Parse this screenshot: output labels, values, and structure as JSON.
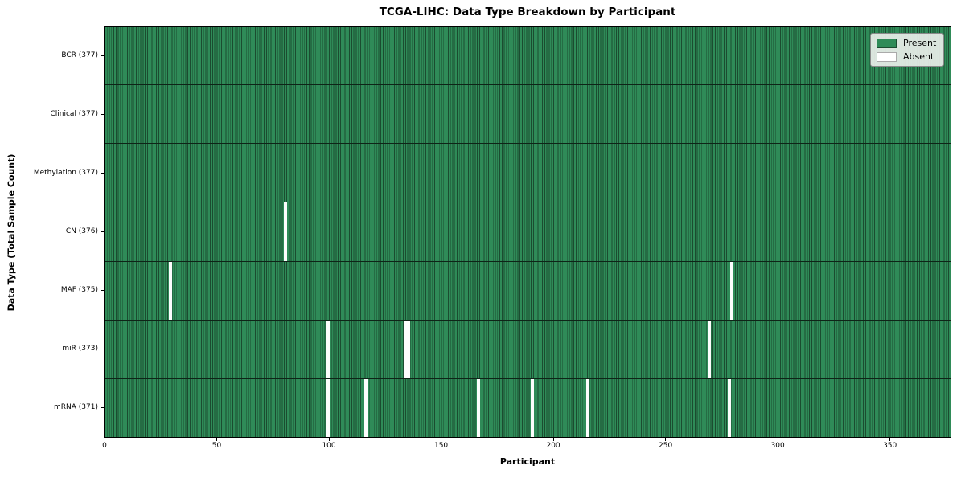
{
  "title": "TCGA-LIHC: Data Type Breakdown by Participant",
  "colors": {
    "present": "#2f8b58",
    "present_edge": "#1b4c30",
    "absent": "#ffffff",
    "absent_edge": "#aaaaaa",
    "figure_bg": "#ffffff"
  },
  "chart_data": {
    "type": "heatmap",
    "title": "TCGA-LIHC: Data Type Breakdown by Participant",
    "xlabel": "Participant",
    "ylabel": "Data Type (Total Sample Count)",
    "xlim": [
      0,
      377
    ],
    "x_ticks": [
      0,
      50,
      100,
      150,
      200,
      250,
      300,
      350
    ],
    "n_participants": 377,
    "grid": false,
    "legend_position": "upper right",
    "legend": [
      {
        "label": "Present",
        "color": "#2f8b58"
      },
      {
        "label": "Absent",
        "color": "#ffffff"
      }
    ],
    "rows": [
      {
        "data_type": "BCR",
        "label": "BCR (377)",
        "total": 377,
        "absent_participants": []
      },
      {
        "data_type": "Clinical",
        "label": "Clinical (377)",
        "total": 377,
        "absent_participants": []
      },
      {
        "data_type": "Methylation",
        "label": "Methylation (377)",
        "total": 377,
        "absent_participants": []
      },
      {
        "data_type": "CN",
        "label": "CN (376)",
        "total": 376,
        "absent_participants": [
          80
        ]
      },
      {
        "data_type": "MAF",
        "label": "MAF (375)",
        "total": 375,
        "absent_participants": [
          29,
          279
        ]
      },
      {
        "data_type": "miR",
        "label": "miR (373)",
        "total": 373,
        "absent_participants": [
          99,
          134,
          135,
          269
        ]
      },
      {
        "data_type": "mRNA",
        "label": "mRNA (371)",
        "total": 371,
        "absent_participants": [
          99,
          116,
          166,
          190,
          215,
          278
        ]
      }
    ]
  }
}
